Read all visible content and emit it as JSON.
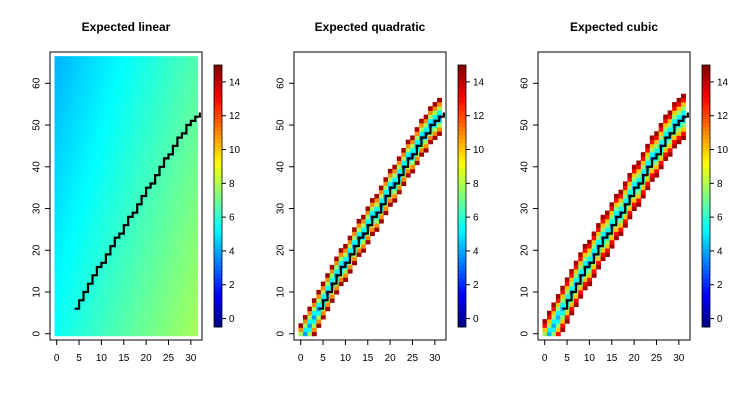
{
  "chart_data": [
    {
      "type": "heatmap",
      "title": "Expected linear",
      "xlabel": "",
      "ylabel": "",
      "xlim": [
        -1.5,
        32.5
      ],
      "ylim": [
        -1.5,
        67.5
      ],
      "xticks": [
        "0",
        "5",
        "10",
        "15",
        "20",
        "25",
        "30"
      ],
      "yticks": [
        "0",
        "10",
        "20",
        "30",
        "40",
        "50",
        "60"
      ],
      "colorbar": {
        "range": [
          -0.5,
          15
        ],
        "ticks": [
          "0",
          "2",
          "4",
          "6",
          "8",
          "10",
          "12",
          "14"
        ]
      },
      "fill_pattern": "full",
      "value_samples": [
        {
          "x": 0,
          "y": 65,
          "value": 4.2
        },
        {
          "x": 0,
          "y": 0,
          "value": 5.5
        },
        {
          "x": 16,
          "y": 30,
          "value": 6.8
        },
        {
          "x": 31,
          "y": 65,
          "value": 6.5
        },
        {
          "x": 31,
          "y": 0,
          "value": 7.8
        }
      ],
      "line": {
        "x": [
          4,
          5,
          6,
          7,
          8,
          9,
          10,
          11,
          12,
          13,
          14,
          15,
          16,
          17,
          18,
          19,
          20,
          21,
          22,
          23,
          24,
          25,
          26,
          27,
          28,
          29,
          30,
          31,
          32
        ],
        "y": [
          6,
          8,
          10,
          12,
          14,
          16,
          17,
          19,
          21,
          23,
          24,
          26,
          28,
          29,
          31,
          33,
          35,
          36,
          38,
          40,
          42,
          43,
          45,
          47,
          48,
          50,
          51,
          52,
          53
        ]
      }
    },
    {
      "type": "heatmap",
      "title": "Expected quadratic",
      "xlabel": "",
      "ylabel": "",
      "xlim": [
        -1.5,
        32.5
      ],
      "ylim": [
        -1.5,
        67.5
      ],
      "xticks": [
        "0",
        "5",
        "10",
        "15",
        "20",
        "25",
        "30"
      ],
      "yticks": [
        "0",
        "10",
        "20",
        "30",
        "40",
        "50",
        "60"
      ],
      "colorbar": {
        "range": [
          -0.5,
          15
        ],
        "ticks": [
          "0",
          "2",
          "4",
          "6",
          "8",
          "10",
          "12",
          "14"
        ]
      },
      "fill_pattern": "band",
      "band": {
        "center_value": 3.8,
        "half_width": 4,
        "edge_value": 14.5
      },
      "line": {
        "x": [
          4,
          5,
          6,
          7,
          8,
          9,
          10,
          11,
          12,
          13,
          14,
          15,
          16,
          17,
          18,
          19,
          20,
          21,
          22,
          23,
          24,
          25,
          26,
          27,
          28,
          29,
          30,
          31,
          32
        ],
        "y": [
          6,
          8,
          10,
          12,
          14,
          16,
          17,
          19,
          21,
          23,
          24,
          26,
          28,
          29,
          31,
          33,
          35,
          36,
          38,
          40,
          42,
          43,
          45,
          47,
          48,
          50,
          51,
          52,
          53
        ]
      }
    },
    {
      "type": "heatmap",
      "title": "Expected cubic",
      "xlabel": "",
      "ylabel": "",
      "xlim": [
        -1.5,
        32.5
      ],
      "ylim": [
        -1.5,
        67.5
      ],
      "xticks": [
        "0",
        "5",
        "10",
        "15",
        "20",
        "25",
        "30"
      ],
      "yticks": [
        "0",
        "10",
        "20",
        "30",
        "40",
        "50",
        "60"
      ],
      "colorbar": {
        "range": [
          -0.5,
          15
        ],
        "ticks": [
          "0",
          "2",
          "4",
          "6",
          "8",
          "10",
          "12",
          "14"
        ]
      },
      "fill_pattern": "band",
      "band": {
        "center_value": 4.2,
        "half_width": 4.5,
        "edge_value": 14.5
      },
      "line": {
        "x": [
          4,
          5,
          6,
          7,
          8,
          9,
          10,
          11,
          12,
          13,
          14,
          15,
          16,
          17,
          18,
          19,
          20,
          21,
          22,
          23,
          24,
          25,
          26,
          27,
          28,
          29,
          30,
          31,
          32
        ],
        "y": [
          6,
          8,
          10,
          12,
          14,
          16,
          17,
          19,
          21,
          23,
          24,
          26,
          28,
          29,
          31,
          33,
          35,
          36,
          38,
          40,
          42,
          43,
          45,
          47,
          48,
          50,
          51,
          52,
          53
        ]
      }
    }
  ]
}
